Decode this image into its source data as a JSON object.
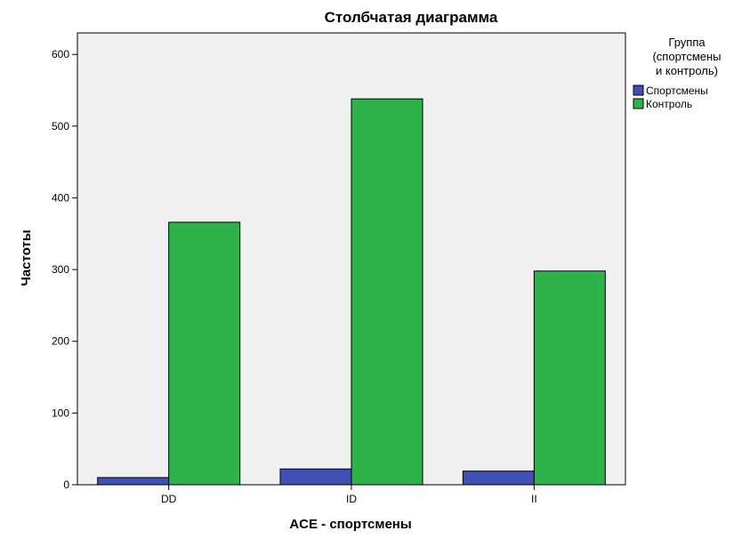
{
  "chart_data": {
    "type": "bar",
    "title": "Столбчатая диаграмма",
    "xlabel": "ACE - спортсмены",
    "ylabel": "Частоты",
    "categories": [
      "DD",
      "ID",
      "II"
    ],
    "series": [
      {
        "name": "Спортсмены",
        "color": "#3f51b5",
        "values": [
          10,
          22,
          19
        ]
      },
      {
        "name": "Контроль",
        "color": "#2db34a",
        "values": [
          366,
          538,
          298
        ]
      }
    ],
    "yticks": [
      0,
      100,
      200,
      300,
      400,
      500,
      600
    ],
    "ylim": [
      0,
      630
    ],
    "grid": false,
    "plot_background": "#f0f0f0",
    "legend": {
      "title_lines": [
        "Группа",
        "(спортсмены",
        "и контроль)"
      ],
      "placement": "right"
    }
  }
}
